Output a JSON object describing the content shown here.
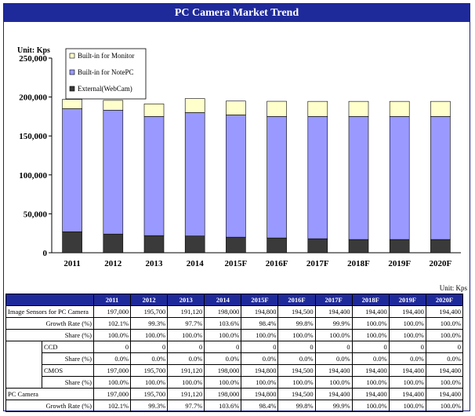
{
  "title": "PC Camera Market Trend",
  "chart_data": {
    "type": "bar",
    "stacked": true,
    "title": "PC Camera Market Trend",
    "unit_label": "Unit: Kps",
    "categories": [
      "2011",
      "2012",
      "2013",
      "2014",
      "2015F",
      "2016F",
      "2017F",
      "2018F",
      "2019F",
      "2020F"
    ],
    "series": [
      {
        "name": "External(WebCam)",
        "color": "#3a3a3a",
        "values": [
          27000,
          24000,
          22000,
          21500,
          20000,
          19000,
          18000,
          17000,
          17000,
          17000
        ]
      },
      {
        "name": "Built-in for NotePC",
        "color": "#9999ff",
        "values": [
          158000,
          159000,
          153000,
          158500,
          157000,
          156000,
          157000,
          158000,
          158000,
          158000
        ]
      },
      {
        "name": "Built-in for Monitor",
        "color": "#ffffcc",
        "values": [
          12000,
          12700,
          16120,
          18000,
          17800,
          19500,
          19400,
          19400,
          19400,
          19400
        ]
      }
    ],
    "ylim": [
      0,
      250000
    ],
    "yticks": [
      "0",
      "50,000",
      "100,000",
      "150,000",
      "200,000",
      "250,000"
    ],
    "legend": "top-left"
  },
  "table": {
    "unit": "Unit: Kps",
    "years": [
      "2011",
      "2012",
      "2013",
      "2014",
      "2015F",
      "2016F",
      "2017F",
      "2018F",
      "2019F",
      "2020F"
    ],
    "rows": [
      {
        "label": "Image Sensors for PC Camera",
        "indent": false,
        "values": [
          "197,000",
          "195,700",
          "191,120",
          "198,000",
          "194,800",
          "194,500",
          "194,400",
          "194,400",
          "194,400",
          "194,400"
        ]
      },
      {
        "label": "Growth Rate (%)",
        "indent": false,
        "sub": true,
        "values": [
          "102.1%",
          "99.3%",
          "97.7%",
          "103.6%",
          "98.4%",
          "99.8%",
          "99.9%",
          "100.0%",
          "100.0%",
          "100.0%"
        ]
      },
      {
        "label": "Share (%)",
        "indent": false,
        "sub": true,
        "values": [
          "100.0%",
          "100.0%",
          "100.0%",
          "100.0%",
          "100.0%",
          "100.0%",
          "100.0%",
          "100.0%",
          "100.0%",
          "100.0%"
        ]
      },
      {
        "label": "CCD",
        "indent": true,
        "values": [
          "0",
          "0",
          "0",
          "0",
          "0",
          "0",
          "0",
          "0",
          "0",
          "0"
        ]
      },
      {
        "label": "Share (%)",
        "indent": true,
        "sub": true,
        "values": [
          "0.0%",
          "0.0%",
          "0.0%",
          "0.0%",
          "0.0%",
          "0.0%",
          "0.0%",
          "0.0%",
          "0.0%",
          "0.0%"
        ]
      },
      {
        "label": "CMOS",
        "indent": true,
        "values": [
          "197,000",
          "195,700",
          "191,120",
          "198,000",
          "194,800",
          "194,500",
          "194,400",
          "194,400",
          "194,400",
          "194,400"
        ]
      },
      {
        "label": "Share (%)",
        "indent": true,
        "sub": true,
        "values": [
          "100.0%",
          "100.0%",
          "100.0%",
          "100.0%",
          "100.0%",
          "100.0%",
          "100.0%",
          "100.0%",
          "100.0%",
          "100.0%"
        ]
      },
      {
        "label": "PC Camera",
        "indent": false,
        "values": [
          "197,000",
          "195,700",
          "191,120",
          "198,000",
          "194,800",
          "194,500",
          "194,400",
          "194,400",
          "194,400",
          "194,400"
        ]
      },
      {
        "label": "Growth Rate (%)",
        "indent": false,
        "sub": true,
        "values": [
          "102.1%",
          "99.3%",
          "97.7%",
          "103.6%",
          "98.4%",
          "99.8%",
          "99.9%",
          "100.0%",
          "100.0%",
          "100.0%"
        ]
      }
    ]
  }
}
